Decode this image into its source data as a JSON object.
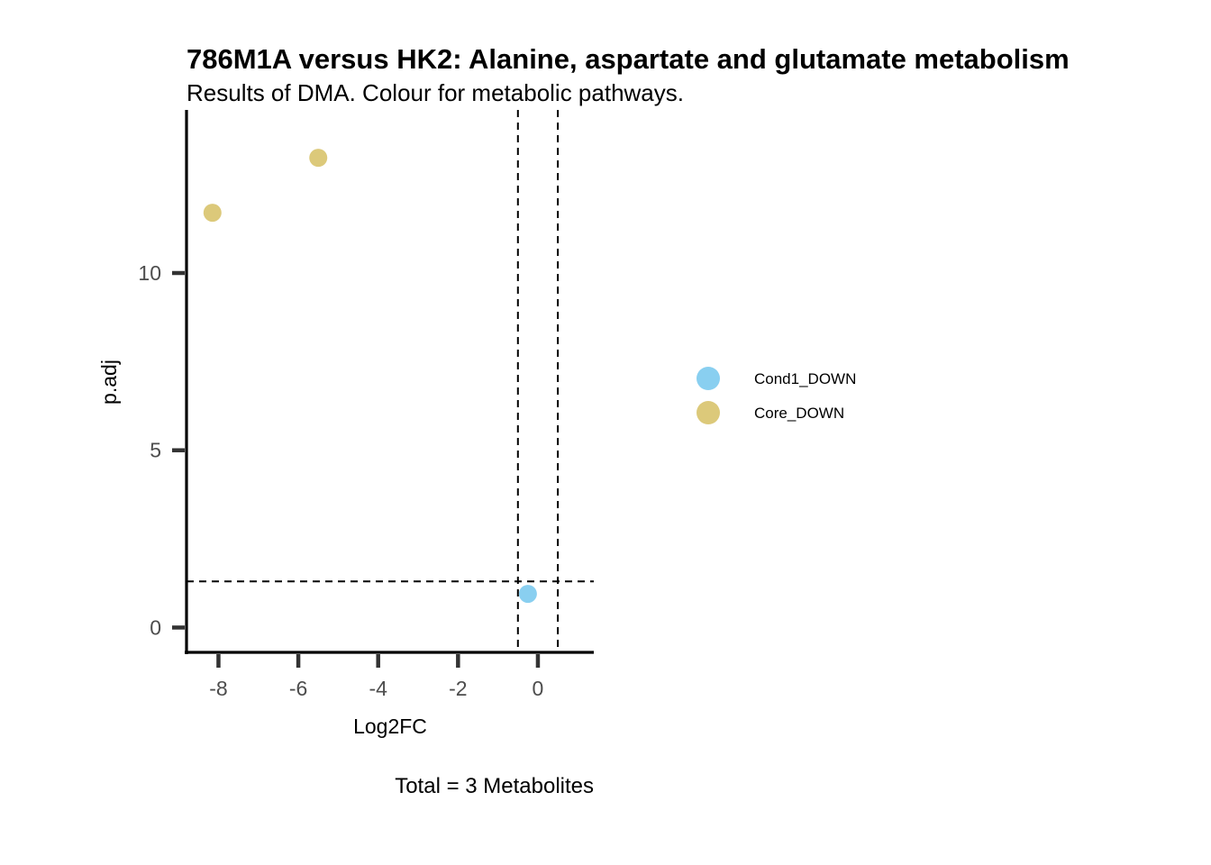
{
  "chart_data": {
    "type": "scatter",
    "title": "786M1A versus HK2: Alanine, aspartate and glutamate metabolism",
    "subtitle": "Results of DMA. Colour for metabolic pathways.",
    "xlabel": "Log2FC",
    "ylabel": "p.adj",
    "caption": "Total = 3 Metabolites",
    "xlim": [
      -8.8,
      1.4
    ],
    "ylim": [
      -0.7,
      14.6
    ],
    "xticks": [
      -8,
      -6,
      -4,
      -2,
      0
    ],
    "yticks": [
      0,
      5,
      10
    ],
    "thresholds": {
      "x": [
        -0.5,
        0.5
      ],
      "y": [
        1.3
      ]
    },
    "grid": false,
    "legend_position": "right",
    "series": [
      {
        "name": "Cond1_DOWN",
        "color": "#89CFF0",
        "points": [
          {
            "x": -0.25,
            "y": 0.95
          }
        ]
      },
      {
        "name": "Core_DOWN",
        "color": "#DCC97A",
        "points": [
          {
            "x": -8.15,
            "y": 11.7
          },
          {
            "x": -5.5,
            "y": 13.25
          }
        ]
      }
    ]
  }
}
